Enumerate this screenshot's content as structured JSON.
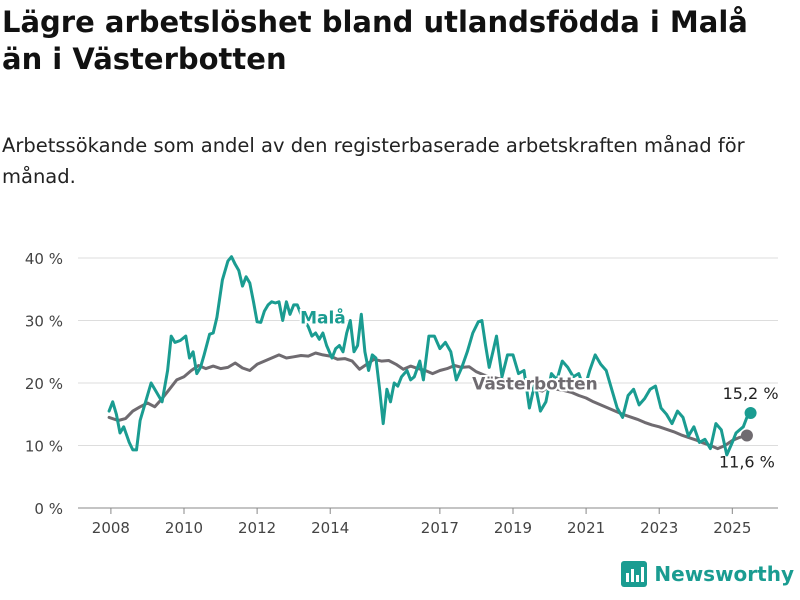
{
  "title": "Lägre arbetslöshet bland utlandsfödda i Malå än i Västerbotten",
  "subtitle": "Arbetssökande som andel av den registerbaserade arbetskraften månad för månad.",
  "brand": "Newsworthy",
  "chart_data": {
    "type": "line",
    "title": "Lägre arbetslöshet bland utlandsfödda i Malå än i Västerbotten",
    "subtitle": "Arbetssökande som andel av den registerbaserade arbetskraften månad för månad.",
    "x_ticks": [
      2008,
      2010,
      2012,
      2014,
      2017,
      2019,
      2021,
      2023,
      2025
    ],
    "xlim": [
      2007.1,
      2026.25
    ],
    "ylim": [
      0,
      40
    ],
    "y_ticks": [
      0,
      10,
      20,
      30,
      40
    ],
    "y_tick_labels": [
      "0 %",
      "10 %",
      "20 %",
      "30 %",
      "40 %"
    ],
    "grid": true,
    "colors": {
      "Malå": "#1a9c91",
      "Västerbotten": "#6f6b70"
    },
    "series": [
      {
        "name": "Västerbotten",
        "points": [
          [
            2007.95,
            14.5
          ],
          [
            2008.2,
            14.0
          ],
          [
            2008.4,
            14.3
          ],
          [
            2008.6,
            15.5
          ],
          [
            2008.8,
            16.2
          ],
          [
            2009.0,
            16.8
          ],
          [
            2009.2,
            16.2
          ],
          [
            2009.4,
            17.5
          ],
          [
            2009.6,
            19.0
          ],
          [
            2009.8,
            20.5
          ],
          [
            2010.0,
            21.0
          ],
          [
            2010.2,
            22.0
          ],
          [
            2010.4,
            22.8
          ],
          [
            2010.6,
            22.3
          ],
          [
            2010.8,
            22.7
          ],
          [
            2011.0,
            22.3
          ],
          [
            2011.2,
            22.5
          ],
          [
            2011.4,
            23.2
          ],
          [
            2011.6,
            22.4
          ],
          [
            2011.8,
            22.0
          ],
          [
            2012.0,
            23.0
          ],
          [
            2012.2,
            23.5
          ],
          [
            2012.4,
            24.0
          ],
          [
            2012.6,
            24.5
          ],
          [
            2012.8,
            24.0
          ],
          [
            2013.0,
            24.2
          ],
          [
            2013.2,
            24.4
          ],
          [
            2013.4,
            24.3
          ],
          [
            2013.6,
            24.8
          ],
          [
            2013.8,
            24.5
          ],
          [
            2014.0,
            24.3
          ],
          [
            2014.2,
            23.8
          ],
          [
            2014.4,
            23.9
          ],
          [
            2014.6,
            23.5
          ],
          [
            2014.8,
            22.2
          ],
          [
            2015.0,
            23.0
          ],
          [
            2015.2,
            23.8
          ],
          [
            2015.4,
            23.5
          ],
          [
            2015.6,
            23.6
          ],
          [
            2015.8,
            23.0
          ],
          [
            2016.0,
            22.2
          ],
          [
            2016.2,
            22.7
          ],
          [
            2016.4,
            22.3
          ],
          [
            2016.6,
            22.0
          ],
          [
            2016.8,
            21.5
          ],
          [
            2017.0,
            22.0
          ],
          [
            2017.2,
            22.3
          ],
          [
            2017.4,
            22.8
          ],
          [
            2017.6,
            22.5
          ],
          [
            2017.8,
            22.6
          ],
          [
            2018.0,
            21.8
          ],
          [
            2018.2,
            21.3
          ],
          [
            2018.4,
            21.0
          ],
          [
            2018.6,
            20.7
          ],
          [
            2018.8,
            20.5
          ],
          [
            2019.0,
            19.9
          ],
          [
            2019.2,
            19.6
          ],
          [
            2019.4,
            19.2
          ],
          [
            2019.6,
            19.0
          ],
          [
            2019.8,
            18.7
          ],
          [
            2020.0,
            19.5
          ],
          [
            2020.2,
            19.0
          ],
          [
            2020.4,
            18.8
          ],
          [
            2020.6,
            18.5
          ],
          [
            2020.8,
            18.0
          ],
          [
            2021.0,
            17.6
          ],
          [
            2021.2,
            17.0
          ],
          [
            2021.4,
            16.5
          ],
          [
            2021.6,
            16.0
          ],
          [
            2021.8,
            15.5
          ],
          [
            2022.0,
            15.0
          ],
          [
            2022.2,
            14.6
          ],
          [
            2022.4,
            14.2
          ],
          [
            2022.6,
            13.7
          ],
          [
            2022.8,
            13.3
          ],
          [
            2023.0,
            13.0
          ],
          [
            2023.2,
            12.6
          ],
          [
            2023.4,
            12.2
          ],
          [
            2023.6,
            11.7
          ],
          [
            2023.8,
            11.3
          ],
          [
            2024.0,
            10.9
          ],
          [
            2024.2,
            10.4
          ],
          [
            2024.4,
            10.0
          ],
          [
            2024.6,
            9.5
          ],
          [
            2024.8,
            10.0
          ],
          [
            2025.0,
            10.8
          ],
          [
            2025.2,
            11.3
          ],
          [
            2025.4,
            11.6
          ]
        ]
      },
      {
        "name": "Malå",
        "points": [
          [
            2007.95,
            15.5
          ],
          [
            2008.05,
            17.0
          ],
          [
            2008.15,
            15.0
          ],
          [
            2008.25,
            12.0
          ],
          [
            2008.35,
            13.0
          ],
          [
            2008.5,
            10.5
          ],
          [
            2008.6,
            9.3
          ],
          [
            2008.7,
            9.3
          ],
          [
            2008.8,
            14.0
          ],
          [
            2008.95,
            17.0
          ],
          [
            2009.1,
            20.0
          ],
          [
            2009.25,
            18.5
          ],
          [
            2009.4,
            17.0
          ],
          [
            2009.55,
            22.0
          ],
          [
            2009.65,
            27.5
          ],
          [
            2009.75,
            26.5
          ],
          [
            2009.9,
            26.8
          ],
          [
            2010.05,
            27.5
          ],
          [
            2010.15,
            24.0
          ],
          [
            2010.25,
            25.0
          ],
          [
            2010.35,
            21.5
          ],
          [
            2010.45,
            22.5
          ],
          [
            2010.55,
            24.5
          ],
          [
            2010.7,
            27.8
          ],
          [
            2010.8,
            28.0
          ],
          [
            2010.9,
            30.5
          ],
          [
            2011.05,
            36.5
          ],
          [
            2011.2,
            39.5
          ],
          [
            2011.3,
            40.2
          ],
          [
            2011.4,
            39.0
          ],
          [
            2011.5,
            38.0
          ],
          [
            2011.6,
            35.5
          ],
          [
            2011.7,
            37.0
          ],
          [
            2011.8,
            36.0
          ],
          [
            2011.9,
            33.0
          ],
          [
            2012.0,
            29.8
          ],
          [
            2012.1,
            29.7
          ],
          [
            2012.2,
            31.5
          ],
          [
            2012.3,
            32.5
          ],
          [
            2012.4,
            33.0
          ],
          [
            2012.5,
            32.8
          ],
          [
            2012.6,
            33.0
          ],
          [
            2012.7,
            30.0
          ],
          [
            2012.8,
            33.0
          ],
          [
            2012.9,
            31.0
          ],
          [
            2013.0,
            32.5
          ],
          [
            2013.1,
            32.5
          ],
          [
            2013.2,
            31.0
          ],
          [
            2013.3,
            30.0
          ],
          [
            2013.4,
            29.0
          ],
          [
            2013.5,
            27.5
          ],
          [
            2013.6,
            28.0
          ],
          [
            2013.7,
            27.0
          ],
          [
            2013.8,
            28.0
          ],
          [
            2013.9,
            26.0
          ],
          [
            2014.05,
            24.0
          ],
          [
            2014.15,
            25.5
          ],
          [
            2014.25,
            26.0
          ],
          [
            2014.35,
            25.0
          ],
          [
            2014.45,
            28.0
          ],
          [
            2014.55,
            30.0
          ],
          [
            2014.65,
            25.0
          ],
          [
            2014.75,
            26.0
          ],
          [
            2014.85,
            31.0
          ],
          [
            2014.95,
            25.0
          ],
          [
            2015.05,
            22.0
          ],
          [
            2015.15,
            24.5
          ],
          [
            2015.25,
            24.0
          ],
          [
            2015.35,
            19.0
          ],
          [
            2015.45,
            13.5
          ],
          [
            2015.55,
            19.0
          ],
          [
            2015.65,
            17.0
          ],
          [
            2015.75,
            20.0
          ],
          [
            2015.85,
            19.5
          ],
          [
            2015.95,
            21.0
          ],
          [
            2016.1,
            22.0
          ],
          [
            2016.2,
            20.5
          ],
          [
            2016.3,
            21.0
          ],
          [
            2016.45,
            23.5
          ],
          [
            2016.55,
            20.5
          ],
          [
            2016.7,
            27.5
          ],
          [
            2016.85,
            27.5
          ],
          [
            2017.0,
            25.5
          ],
          [
            2017.15,
            26.5
          ],
          [
            2017.3,
            25.0
          ],
          [
            2017.45,
            20.5
          ],
          [
            2017.6,
            22.5
          ],
          [
            2017.75,
            25.0
          ],
          [
            2017.9,
            28.0
          ],
          [
            2018.05,
            29.8
          ],
          [
            2018.15,
            30.0
          ],
          [
            2018.25,
            26.0
          ],
          [
            2018.35,
            22.5
          ],
          [
            2018.45,
            25.0
          ],
          [
            2018.55,
            27.5
          ],
          [
            2018.7,
            21.0
          ],
          [
            2018.85,
            24.5
          ],
          [
            2019.0,
            24.5
          ],
          [
            2019.15,
            21.5
          ],
          [
            2019.3,
            22.0
          ],
          [
            2019.45,
            16.0
          ],
          [
            2019.6,
            20.0
          ],
          [
            2019.75,
            15.5
          ],
          [
            2019.9,
            17.0
          ],
          [
            2020.05,
            21.5
          ],
          [
            2020.2,
            20.5
          ],
          [
            2020.35,
            23.5
          ],
          [
            2020.5,
            22.5
          ],
          [
            2020.65,
            21.0
          ],
          [
            2020.8,
            21.5
          ],
          [
            2020.95,
            19.0
          ],
          [
            2021.1,
            22.0
          ],
          [
            2021.25,
            24.5
          ],
          [
            2021.4,
            23.0
          ],
          [
            2021.55,
            22.0
          ],
          [
            2021.7,
            19.0
          ],
          [
            2021.85,
            16.0
          ],
          [
            2022.0,
            14.5
          ],
          [
            2022.15,
            18.0
          ],
          [
            2022.3,
            19.0
          ],
          [
            2022.45,
            16.5
          ],
          [
            2022.6,
            17.5
          ],
          [
            2022.75,
            19.0
          ],
          [
            2022.9,
            19.5
          ],
          [
            2023.05,
            16.0
          ],
          [
            2023.2,
            15.0
          ],
          [
            2023.35,
            13.5
          ],
          [
            2023.5,
            15.5
          ],
          [
            2023.65,
            14.5
          ],
          [
            2023.8,
            11.5
          ],
          [
            2023.95,
            13.0
          ],
          [
            2024.1,
            10.5
          ],
          [
            2024.25,
            11.0
          ],
          [
            2024.4,
            9.5
          ],
          [
            2024.55,
            13.5
          ],
          [
            2024.7,
            12.5
          ],
          [
            2024.85,
            8.5
          ],
          [
            2025.0,
            10.5
          ],
          [
            2025.1,
            12.0
          ],
          [
            2025.2,
            12.5
          ],
          [
            2025.3,
            13.0
          ],
          [
            2025.4,
            14.5
          ],
          [
            2025.5,
            15.2
          ]
        ]
      }
    ],
    "annotations": [
      {
        "series": "Malå",
        "text": "Malå",
        "x": 2013.8,
        "y": 29.5
      },
      {
        "series": "Västerbotten",
        "text": "Västerbotten",
        "x": 2019.6,
        "y": 19.0
      }
    ],
    "end_labels": [
      {
        "series": "Malå",
        "text": "15,2 %",
        "x": 2025.5,
        "y": 15.2
      },
      {
        "series": "Västerbotten",
        "text": "11,6 %",
        "x": 2025.4,
        "y": 11.6
      }
    ]
  }
}
